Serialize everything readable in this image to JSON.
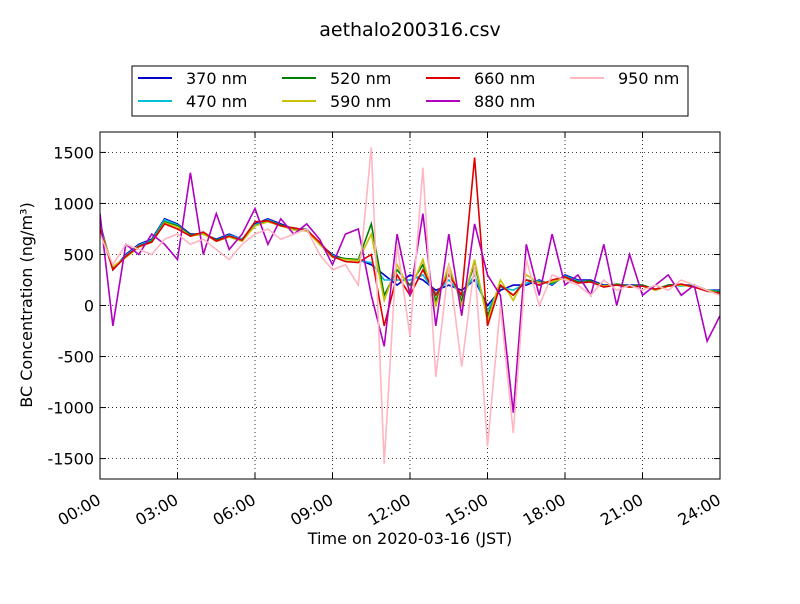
{
  "chart_data": {
    "type": "line",
    "title": "aethalo200316.csv",
    "x_label": "Time on 2020-03-16 (JST)",
    "y_label": "BC Concentration (ng/m³)",
    "x": [
      0,
      0.5,
      1,
      1.5,
      2,
      2.5,
      3,
      3.5,
      4,
      4.5,
      5,
      5.5,
      6,
      6.5,
      7,
      7.5,
      8,
      8.5,
      9,
      9.5,
      10,
      10.5,
      11,
      11.5,
      12,
      12.5,
      13,
      13.5,
      14,
      14.5,
      15,
      15.5,
      16,
      16.5,
      17,
      17.5,
      18,
      18.5,
      19,
      19.5,
      20,
      20.5,
      21,
      21.5,
      22,
      22.5,
      23,
      23.5,
      24
    ],
    "xlim": [
      0,
      24
    ],
    "xticks": [
      {
        "value": 0,
        "label": "00:00"
      },
      {
        "value": 3,
        "label": "03:00"
      },
      {
        "value": 6,
        "label": "06:00"
      },
      {
        "value": 9,
        "label": "09:00"
      },
      {
        "value": 12,
        "label": "12:00"
      },
      {
        "value": 15,
        "label": "15:00"
      },
      {
        "value": 18,
        "label": "18:00"
      },
      {
        "value": 21,
        "label": "21:00"
      },
      {
        "value": 24,
        "label": "24:00"
      }
    ],
    "ylim": [
      -1700,
      1700
    ],
    "yticks": [
      -1500,
      -1000,
      -500,
      0,
      500,
      1000,
      1500
    ],
    "grid": true,
    "legend": "upper center",
    "series": [
      {
        "name": "370 nm",
        "color": "#0000cc",
        "values": [
          800,
          350,
          500,
          600,
          650,
          850,
          800,
          700,
          700,
          650,
          700,
          650,
          800,
          850,
          800,
          750,
          750,
          600,
          500,
          450,
          450,
          400,
          300,
          200,
          300,
          250,
          150,
          200,
          150,
          250,
          0,
          150,
          200,
          200,
          250,
          200,
          300,
          250,
          250,
          200,
          200,
          200,
          200,
          150,
          200,
          200,
          200,
          150,
          150
        ]
      },
      {
        "name": "470 nm",
        "color": "#00bfd8",
        "values": [
          780,
          360,
          490,
          590,
          640,
          840,
          790,
          690,
          700,
          640,
          690,
          650,
          790,
          840,
          790,
          750,
          750,
          600,
          490,
          450,
          440,
          420,
          250,
          250,
          250,
          300,
          120,
          250,
          100,
          300,
          -50,
          180,
          150,
          220,
          240,
          210,
          290,
          240,
          240,
          190,
          200,
          190,
          200,
          150,
          200,
          190,
          200,
          150,
          140
        ]
      },
      {
        "name": "520 nm",
        "color": "#008000",
        "values": [
          770,
          370,
          480,
          580,
          630,
          820,
          780,
          690,
          710,
          640,
          680,
          640,
          780,
          830,
          790,
          750,
          740,
          610,
          480,
          460,
          450,
          800,
          100,
          350,
          200,
          400,
          50,
          350,
          50,
          400,
          -100,
          200,
          100,
          250,
          230,
          220,
          280,
          230,
          240,
          190,
          210,
          190,
          200,
          160,
          200,
          200,
          190,
          150,
          130
        ]
      },
      {
        "name": "590 nm",
        "color": "#c8c000",
        "values": [
          760,
          380,
          470,
          570,
          620,
          810,
          770,
          680,
          700,
          630,
          670,
          630,
          780,
          820,
          780,
          740,
          730,
          600,
          470,
          450,
          440,
          700,
          50,
          400,
          150,
          450,
          0,
          400,
          0,
          450,
          -150,
          250,
          50,
          300,
          220,
          230,
          270,
          220,
          230,
          190,
          200,
          180,
          190,
          150,
          190,
          200,
          180,
          150,
          120
        ]
      },
      {
        "name": "660 nm",
        "color": "#e00000",
        "values": [
          750,
          350,
          480,
          580,
          620,
          800,
          750,
          680,
          720,
          630,
          680,
          640,
          820,
          830,
          780,
          760,
          740,
          620,
          480,
          430,
          420,
          500,
          -200,
          300,
          100,
          350,
          100,
          300,
          100,
          1450,
          -200,
          200,
          100,
          250,
          200,
          250,
          280,
          220,
          230,
          180,
          200,
          180,
          190,
          160,
          190,
          210,
          180,
          140,
          120
        ]
      },
      {
        "name": "880 nm",
        "color": "#b000c0",
        "values": [
          900,
          -200,
          600,
          500,
          700,
          600,
          450,
          1300,
          500,
          900,
          550,
          700,
          950,
          600,
          850,
          700,
          800,
          650,
          400,
          700,
          750,
          100,
          -400,
          700,
          100,
          900,
          -200,
          700,
          -100,
          800,
          300,
          100,
          -1050,
          600,
          100,
          700,
          200,
          300,
          100,
          600,
          0,
          500,
          100,
          200,
          300,
          100,
          200,
          -350,
          -100
        ]
      },
      {
        "name": "950 nm",
        "color": "#ffb6c1",
        "values": [
          700,
          400,
          600,
          550,
          500,
          650,
          700,
          600,
          650,
          550,
          450,
          600,
          700,
          750,
          650,
          700,
          750,
          500,
          350,
          400,
          200,
          1550,
          -1550,
          600,
          -300,
          1350,
          -700,
          400,
          -600,
          400,
          -1380,
          0,
          -1250,
          450,
          0,
          300,
          250,
          200,
          100,
          250,
          150,
          200,
          150,
          200,
          150,
          250,
          200,
          150,
          100
        ]
      }
    ]
  }
}
